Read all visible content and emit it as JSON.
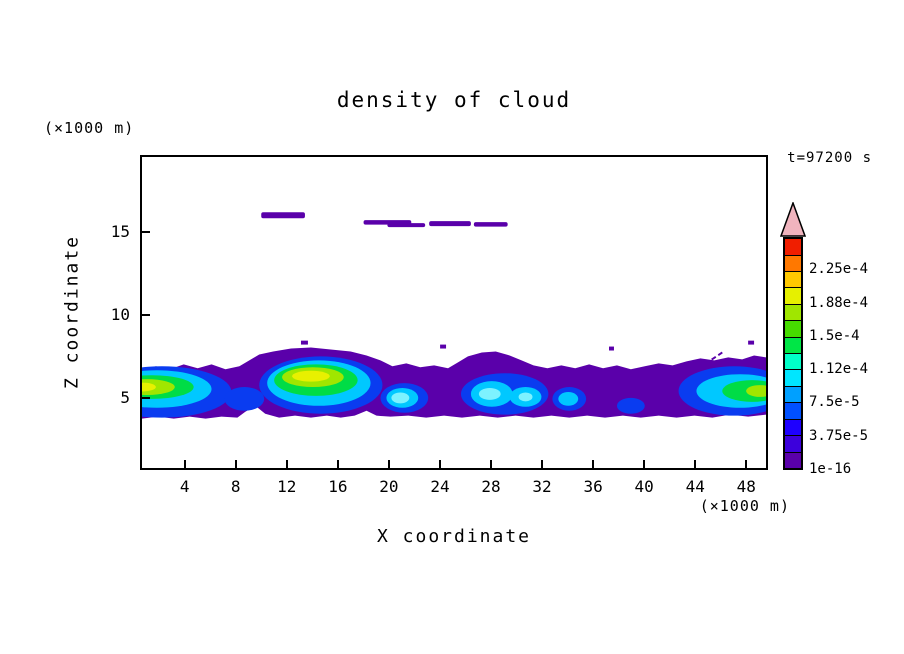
{
  "title": "density of cloud",
  "time_label": "t=97200 s",
  "axes": {
    "x_label": "X coordinate",
    "x_unit_label": "(×1000 m)",
    "y_label": "Z coordinate",
    "y_unit_label": "(×1000 m)",
    "x_ticks": [
      4,
      8,
      12,
      16,
      20,
      24,
      28,
      32,
      36,
      40,
      44,
      48
    ],
    "y_ticks": [
      5,
      10,
      15
    ]
  },
  "colorbar": {
    "labels_top_to_bottom": [
      "2.25e-4",
      "1.88e-4",
      "1.5e-4",
      "1.12e-4",
      "7.5e-5",
      "3.75e-5",
      "1e-16"
    ],
    "segment_colors_bottom_to_top": [
      "#5a00aa",
      "#3c00dc",
      "#1e00ff",
      "#0050ff",
      "#00a0ff",
      "#00e6ff",
      "#00ffc8",
      "#00e646",
      "#46dc00",
      "#a0e600",
      "#e6f000",
      "#ffc800",
      "#ff7800",
      "#f01e00"
    ],
    "arrow_color": "#f0b4be"
  },
  "chart_data": {
    "type": "contour",
    "title": "density of cloud",
    "xlabel": "X coordinate (×1000 m)",
    "ylabel": "Z coordinate (×1000 m)",
    "xlim": [
      0.5,
      49.7
    ],
    "ylim": [
      0.7,
      19.6
    ],
    "x_ticks": [
      4,
      8,
      12,
      16,
      20,
      24,
      28,
      32,
      36,
      40,
      44,
      48
    ],
    "y_ticks": [
      5,
      10,
      15
    ],
    "time_annotation": "t=97200 s",
    "grid": false,
    "colorbar": {
      "position": "right",
      "min_level": 1e-16,
      "level_step": 1.875e-05,
      "labeled_levels": [
        "1e-16",
        "3.75e-5",
        "7.5e-5",
        "1.12e-4",
        "1.5e-4",
        "1.88e-4",
        "2.25e-4"
      ],
      "overflow_arrow": "top"
    },
    "features": [
      {
        "name": "main-cloud-band",
        "description": "continuous ragged cloud layer spanning the full x range",
        "x_range": [
          0.5,
          49.7
        ],
        "z_range": [
          3.8,
          7.3
        ],
        "background_level": "1e-16 to 3.75e-5 (violet)",
        "cores": [
          {
            "x_range": [
              0.5,
              5.0
            ],
            "z_center": 5.6,
            "peak": "approx 1.4e-4 (yellow-green)"
          },
          {
            "x_range": [
              10.0,
              18.0
            ],
            "z_center": 5.8,
            "peak": "approx 1.6e-4 (yellow)"
          },
          {
            "x_range": [
              19.0,
              22.5
            ],
            "z_center": 5.0,
            "peak": "approx 9e-5 (cyan)"
          },
          {
            "x_range": [
              25.5,
              31.5
            ],
            "z_center": 5.2,
            "peak": "approx 1.0e-4 (light cyan)"
          },
          {
            "x_range": [
              32.5,
              35.0
            ],
            "z_center": 5.0,
            "peak": "approx 7.5e-5 (cyan)"
          },
          {
            "x_range": [
              43.5,
              49.7
            ],
            "z_center": 5.6,
            "peak": "approx 1.3e-4 (green)"
          }
        ]
      },
      {
        "name": "upper-level-cloud-streaks",
        "description": "thin detached cloud filaments",
        "z_center": 16.0,
        "x_ranges": [
          [
            10.0,
            13.2
          ],
          [
            18.0,
            22.8
          ],
          [
            23.2,
            29.2
          ]
        ],
        "level": "1e-16 to 1.875e-5 (violet)"
      }
    ]
  }
}
